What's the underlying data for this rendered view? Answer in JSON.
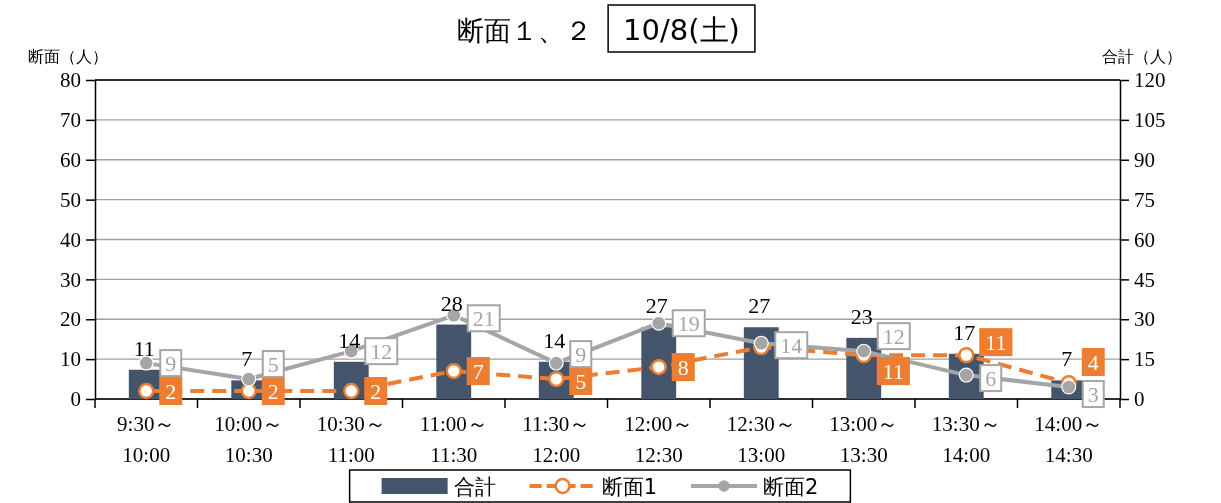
{
  "chart_data": {
    "type": "bar",
    "title": "断面１、２",
    "subtitle": "10/8(土)",
    "ylabel": "断面（人）",
    "y2label": "合計（人）",
    "categories": [
      "9:30～\n10:00",
      "10:00～\n10:30",
      "10:30～\n11:00",
      "11:00～\n11:30",
      "11:30～\n12:00",
      "12:00～\n12:30",
      "12:30～\n13:00",
      "13:00～\n13:30",
      "13:30～\n14:00",
      "14:00～\n14:30"
    ],
    "series": [
      {
        "name": "合計",
        "axis": "y2",
        "color": "#44546a",
        "values": [
          11,
          7,
          14,
          28,
          14,
          27,
          27,
          23,
          17,
          7
        ]
      },
      {
        "name": "断面1",
        "type": "line",
        "color": "#ed7d31",
        "line_style": "dashed",
        "marker": "circle",
        "values": [
          2,
          2,
          2,
          7,
          5,
          8,
          13,
          11,
          11,
          4
        ],
        "value_labels": [
          "2",
          "2",
          "2",
          "7",
          "5",
          "8",
          null,
          "11",
          "11",
          "4"
        ]
      },
      {
        "name": "断面2",
        "type": "line",
        "color": "#a5a5a5",
        "line_style": "solid",
        "marker": "circle",
        "values": [
          9,
          5,
          12,
          21,
          9,
          19,
          14,
          12,
          6,
          3
        ]
      }
    ],
    "ylim": [
      0,
      80
    ],
    "yticks": [
      0,
      10,
      20,
      30,
      40,
      50,
      60,
      70,
      80
    ],
    "y2lim": [
      0,
      120
    ],
    "y2ticks": [
      0,
      15,
      30,
      45,
      60,
      75,
      90,
      105,
      120
    ],
    "grid": "y",
    "legend": "bottom",
    "data_labels": true
  }
}
